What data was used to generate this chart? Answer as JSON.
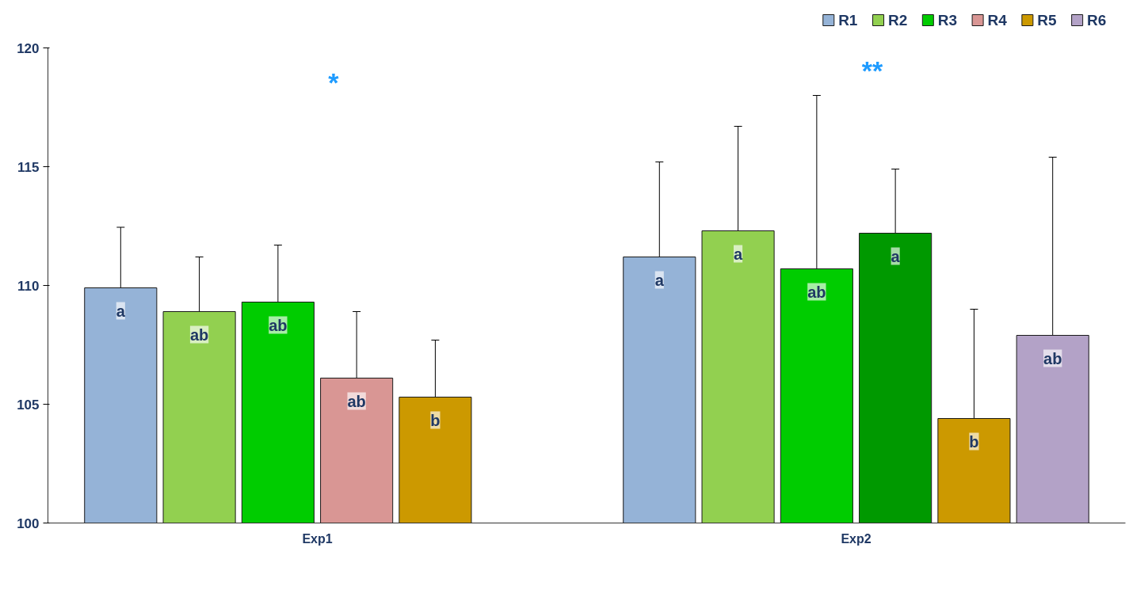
{
  "chart_data": {
    "type": "bar",
    "categories": [
      "Exp1",
      "Exp2"
    ],
    "series": [
      {
        "name": "R1",
        "color": "#95b3d7",
        "values": [
          109.9,
          111.2
        ],
        "errors": [
          2.55,
          4.0
        ],
        "value_labels": [
          "a",
          "a"
        ]
      },
      {
        "name": "R2",
        "color": "#92d050",
        "values": [
          108.9,
          112.3
        ],
        "errors": [
          2.3,
          4.4
        ],
        "value_labels": [
          "ab",
          "a"
        ]
      },
      {
        "name": "R3",
        "color": "#00cc00",
        "values": [
          109.3,
          110.7
        ],
        "errors": [
          2.4,
          7.3
        ],
        "value_labels": [
          "ab",
          "ab"
        ]
      },
      {
        "name": "R4",
        "color": "#d99694",
        "colors": [
          "#d99694",
          "#009900"
        ],
        "values": [
          106.1,
          112.2
        ],
        "errors": [
          2.8,
          2.7
        ],
        "value_labels": [
          "ab",
          "a"
        ]
      },
      {
        "name": "R5",
        "color": "#cc9900",
        "values": [
          105.3,
          104.4
        ],
        "errors": [
          2.4,
          4.6
        ],
        "value_labels": [
          "b",
          "b"
        ]
      },
      {
        "name": "R6",
        "color": "#b3a2c7",
        "values": [
          null,
          107.9
        ],
        "errors": [
          null,
          7.5
        ],
        "value_labels": [
          null,
          "ab"
        ]
      }
    ],
    "ylim": [
      100,
      120
    ],
    "yticks": [
      100,
      105,
      110,
      115,
      120
    ],
    "annotations": [
      "*",
      "**"
    ],
    "legend": "top right",
    "grid": false
  }
}
